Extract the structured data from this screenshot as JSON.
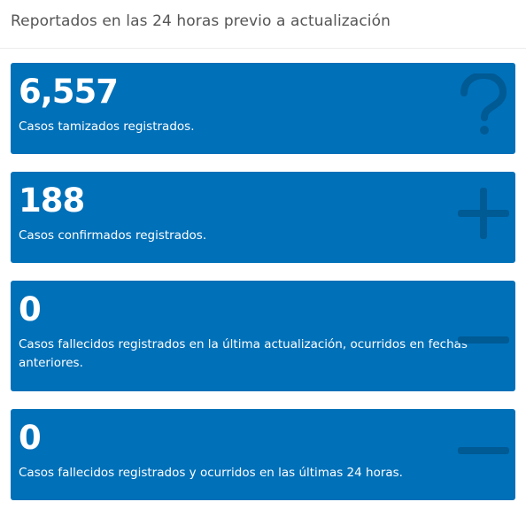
{
  "header": {
    "title": "Reportados en las 24 horas previo a actualización"
  },
  "cards": [
    {
      "value": "6,557",
      "label": "Casos tamizados registrados.",
      "icon": "question-icon"
    },
    {
      "value": "188",
      "label": "Casos confirmados registrados.",
      "icon": "plus-icon"
    },
    {
      "value": "0",
      "label": "Casos fallecidos registrados en la última actualización, ocurridos en fechas anteriores.",
      "icon": "minus-icon"
    },
    {
      "value": "0",
      "label": "Casos fallecidos registrados y ocurridos en las últimas 24 horas.",
      "icon": "minus-icon"
    }
  ],
  "colors": {
    "card_bg": "#0070b8",
    "icon": "#005a94",
    "header_text": "#555555"
  }
}
